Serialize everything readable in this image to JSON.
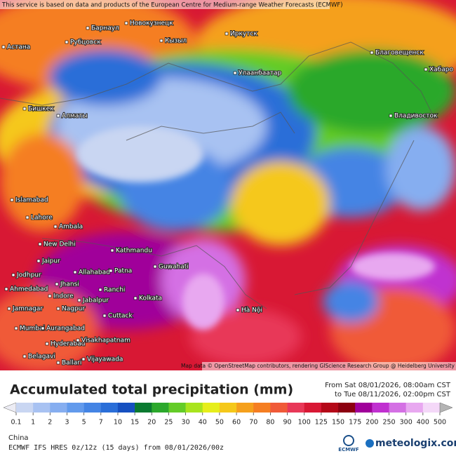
{
  "map": {
    "notice": "This service is based on data and products of the European Centre for Medium-range Weather Forecasts (ECMWF)",
    "attribution": "Map data © OpenStreetMap contributors, rendering GIScience Research Group @ Heidelberg University",
    "cities": [
      "Астана",
      "Барнаул",
      "Новокузнецк",
      "Рубцовск",
      "Кызыл",
      "Иркутск",
      "Улаанбаатар",
      "Благовещенск",
      "Хабаро",
      "Бишкек",
      "Алматы",
      "Владивосток",
      "Islamabad",
      "Lahore",
      "Ambala",
      "New Delhi",
      "Kathmandu",
      "Jaipur",
      "Jodhpur",
      "Allahabad",
      "Patna",
      "Guwahati",
      "Ahmedabad",
      "Jhansi",
      "Ranchi",
      "Indore",
      "Jabalpur",
      "Kolkata",
      "Jamnagar",
      "Nagpur",
      "Cuttack",
      "Mumbai",
      "Aurangabad",
      "Hyderabad",
      "Visakhapatnam",
      "Belagavi",
      "Vijayawada",
      "Ballari",
      "Hà Nội"
    ]
  },
  "legend": {
    "title": "Accumulated total precipitation (mm)",
    "from": "From Sat 08/01/2026, 08:00am CST",
    "to": "to Tue 08/11/2026, 02:00pm CST",
    "colors": [
      "#ececf4",
      "#c9d6f2",
      "#a8c2f2",
      "#86aef0",
      "#629aec",
      "#4484e4",
      "#2a6ed8",
      "#1650c0",
      "#0a7a30",
      "#2ca82c",
      "#64cc28",
      "#a8e41e",
      "#e6ee1c",
      "#f5c81a",
      "#f5a01c",
      "#f57e22",
      "#f05a38",
      "#e83858",
      "#d81834",
      "#b40818",
      "#8c0010",
      "#a0009a",
      "#c030d0",
      "#d470e4",
      "#e8a8f0",
      "#f4d8f8",
      "#b4b4b4"
    ],
    "ticks": [
      0.1,
      1,
      2,
      3,
      5,
      7,
      10,
      15,
      20,
      25,
      30,
      40,
      50,
      60,
      70,
      80,
      90,
      100,
      125,
      150,
      175,
      200,
      250,
      300,
      400,
      500
    ]
  },
  "footer": {
    "region": "China",
    "model": "ECMWF IFS HRES 0z/12z (15 days) from 08/01/2026/00z",
    "logo": "ECMWF",
    "brand": "meteologix.com"
  }
}
